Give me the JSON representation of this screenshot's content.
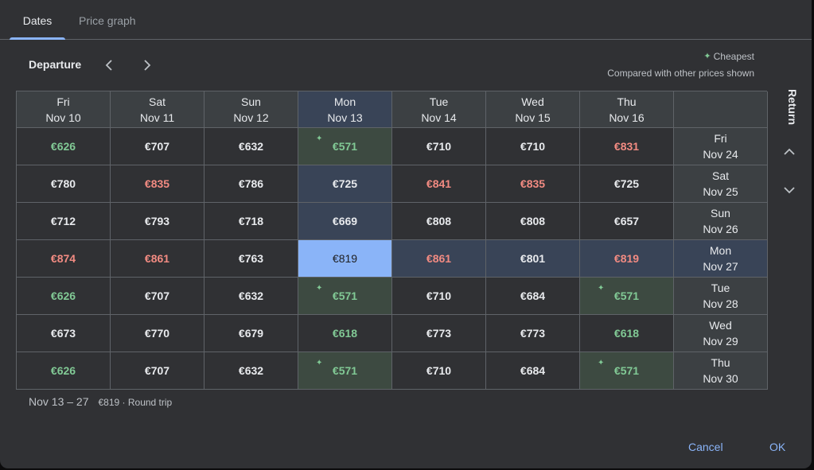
{
  "tabs": [
    {
      "label": "Dates",
      "active": true
    },
    {
      "label": "Price graph",
      "active": false
    }
  ],
  "departure_label": "Departure",
  "return_label": "Return",
  "legend": {
    "cheapest": "Cheapest",
    "compared": "Compared with other prices shown"
  },
  "columns": [
    {
      "day": "Fri",
      "date": "Nov 10"
    },
    {
      "day": "Sat",
      "date": "Nov 11"
    },
    {
      "day": "Sun",
      "date": "Nov 12"
    },
    {
      "day": "Mon",
      "date": "Nov 13"
    },
    {
      "day": "Tue",
      "date": "Nov 14"
    },
    {
      "day": "Wed",
      "date": "Nov 15"
    },
    {
      "day": "Thu",
      "date": "Nov 16"
    }
  ],
  "rows": [
    {
      "day": "Fri",
      "date": "Nov 24",
      "prices": [
        {
          "v": "€626",
          "t": "low"
        },
        {
          "v": "€707",
          "t": ""
        },
        {
          "v": "€632",
          "t": ""
        },
        {
          "v": "€571",
          "t": "cheapest"
        },
        {
          "v": "€710",
          "t": ""
        },
        {
          "v": "€710",
          "t": ""
        },
        {
          "v": "€831",
          "t": "high"
        }
      ]
    },
    {
      "day": "Sat",
      "date": "Nov 25",
      "prices": [
        {
          "v": "€780",
          "t": ""
        },
        {
          "v": "€835",
          "t": "high"
        },
        {
          "v": "€786",
          "t": ""
        },
        {
          "v": "€725",
          "t": ""
        },
        {
          "v": "€841",
          "t": "high"
        },
        {
          "v": "€835",
          "t": "high"
        },
        {
          "v": "€725",
          "t": ""
        }
      ]
    },
    {
      "day": "Sun",
      "date": "Nov 26",
      "prices": [
        {
          "v": "€712",
          "t": ""
        },
        {
          "v": "€793",
          "t": ""
        },
        {
          "v": "€718",
          "t": ""
        },
        {
          "v": "€669",
          "t": ""
        },
        {
          "v": "€808",
          "t": ""
        },
        {
          "v": "€808",
          "t": ""
        },
        {
          "v": "€657",
          "t": ""
        }
      ]
    },
    {
      "day": "Mon",
      "date": "Nov 27",
      "prices": [
        {
          "v": "€874",
          "t": "high"
        },
        {
          "v": "€861",
          "t": "high"
        },
        {
          "v": "€763",
          "t": ""
        },
        {
          "v": "€819",
          "t": "selected"
        },
        {
          "v": "€861",
          "t": "high"
        },
        {
          "v": "€801",
          "t": ""
        },
        {
          "v": "€819",
          "t": "high"
        }
      ]
    },
    {
      "day": "Tue",
      "date": "Nov 28",
      "prices": [
        {
          "v": "€626",
          "t": "low"
        },
        {
          "v": "€707",
          "t": ""
        },
        {
          "v": "€632",
          "t": ""
        },
        {
          "v": "€571",
          "t": "cheapest"
        },
        {
          "v": "€710",
          "t": ""
        },
        {
          "v": "€684",
          "t": ""
        },
        {
          "v": "€571",
          "t": "cheapest"
        }
      ]
    },
    {
      "day": "Wed",
      "date": "Nov 29",
      "prices": [
        {
          "v": "€673",
          "t": ""
        },
        {
          "v": "€770",
          "t": ""
        },
        {
          "v": "€679",
          "t": ""
        },
        {
          "v": "€618",
          "t": "low"
        },
        {
          "v": "€773",
          "t": ""
        },
        {
          "v": "€773",
          "t": ""
        },
        {
          "v": "€618",
          "t": "low"
        }
      ]
    },
    {
      "day": "Thu",
      "date": "Nov 30",
      "prices": [
        {
          "v": "€626",
          "t": "low"
        },
        {
          "v": "€707",
          "t": ""
        },
        {
          "v": "€632",
          "t": ""
        },
        {
          "v": "€571",
          "t": "cheapest"
        },
        {
          "v": "€710",
          "t": ""
        },
        {
          "v": "€684",
          "t": ""
        },
        {
          "v": "€571",
          "t": "cheapest"
        }
      ]
    }
  ],
  "selection": {
    "column_index": 3,
    "row_index": 3
  },
  "summary": {
    "range": "Nov 13 – 27",
    "info": "€819 · Round trip"
  },
  "actions": {
    "cancel": "Cancel",
    "ok": "OK"
  },
  "colors": {
    "accent": "#8ab4f8",
    "cheap": "#81c995",
    "expensive": "#f28b82",
    "background": "#303134"
  }
}
